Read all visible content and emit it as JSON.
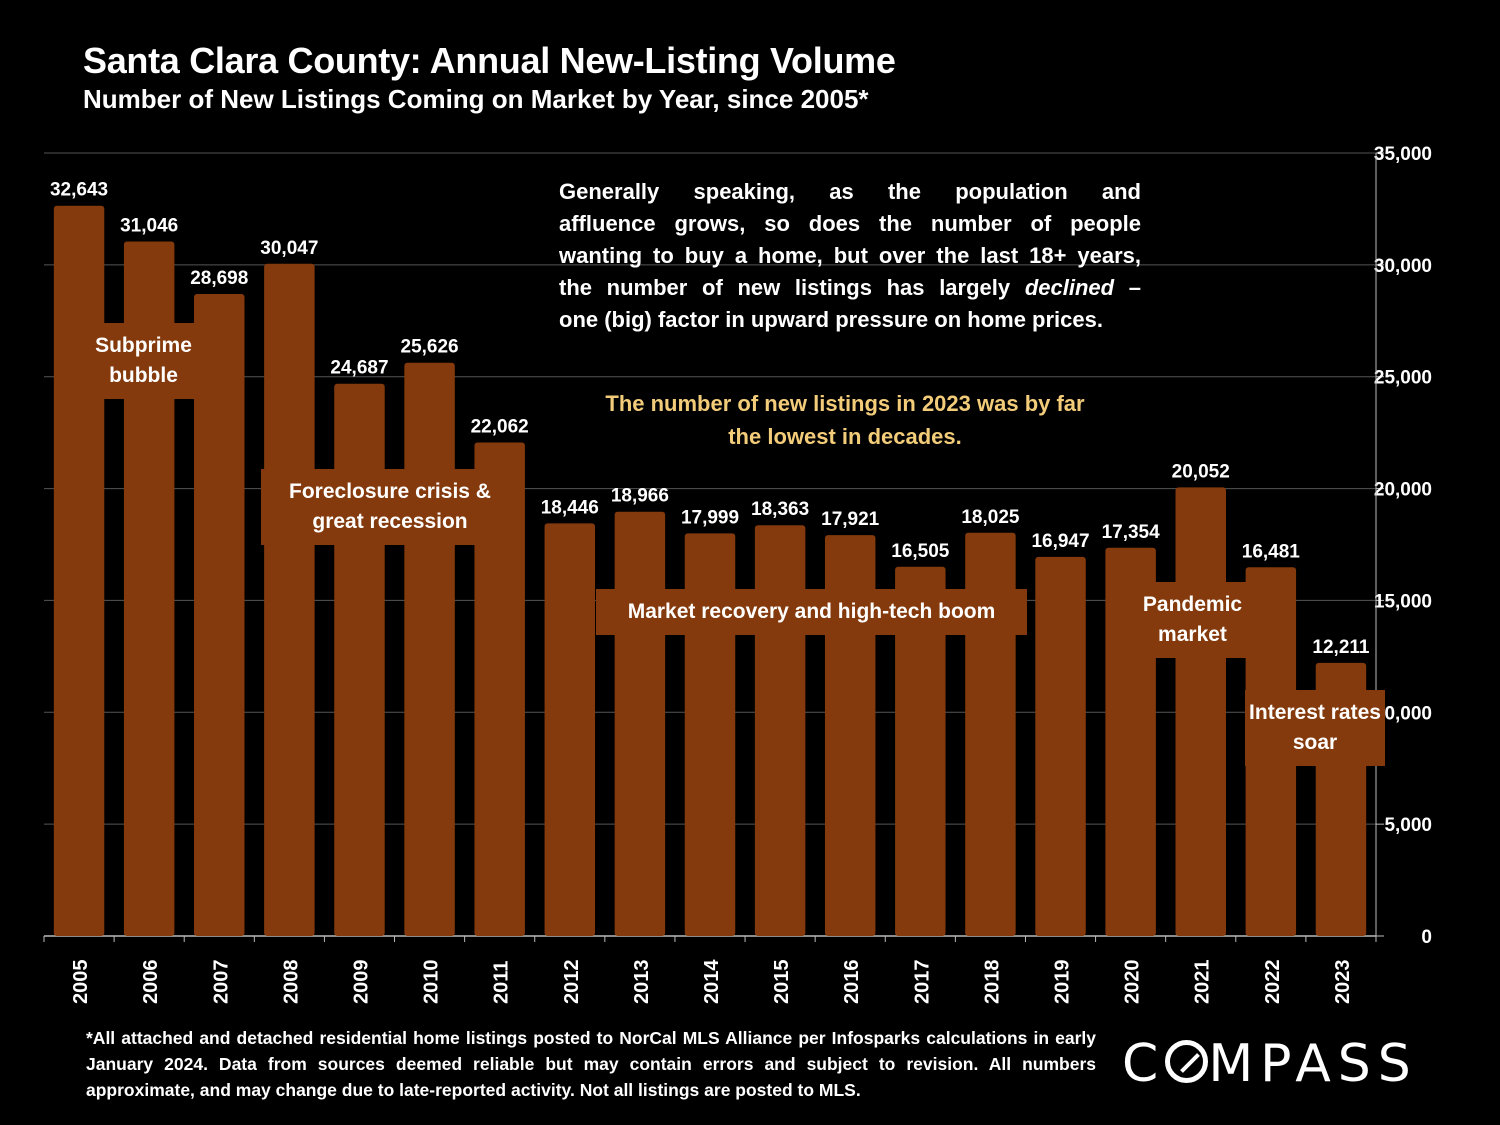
{
  "title": "Santa Clara County: Annual New-Listing Volume",
  "subtitle": "Number of New Listings Coming on Market by Year, since 2005*",
  "annotations": {
    "main_lines": [
      "Generally speaking, as the population and",
      "affluence grows, so does the number of people",
      "wanting to buy a home, but over the last 18+ years,",
      "the number of new listings has largely"
    ],
    "main_emph": "declined",
    "main_dash": "–",
    "main_last": "one (big) factor in upward pressure on home prices.",
    "highlight": "The number of new listings in 2023 was by far the lowest in decades.",
    "highlight_color": "#f3cc7a"
  },
  "eras": {
    "subprime": "Subprime bubble",
    "foreclosure": "Foreclosure crisis & great recession",
    "recovery": "Market recovery and high-tech boom",
    "pandemic": "Pandemic market",
    "rates": "Interest rates soar"
  },
  "footnote": "*All attached and detached residential home listings posted to NorCal MLS Alliance per Infosparks calculations in early January 2024. Data from sources deemed reliable but may contain errors and subject to revision. All numbers approximate, and may change due to late-reported activity. Not all listings are posted to MLS.",
  "logo": {
    "before": "C",
    "after": "MPASS"
  },
  "colors": {
    "bar": "#843a0c",
    "background": "#000000",
    "grid": "#555555"
  },
  "chart_data": {
    "type": "bar",
    "categories": [
      "2005",
      "2006",
      "2007",
      "2008",
      "2009",
      "2010",
      "2011",
      "2012",
      "2013",
      "2014",
      "2015",
      "2016",
      "2017",
      "2018",
      "2019",
      "2020",
      "2021",
      "2022",
      "2023"
    ],
    "values": [
      32643,
      31046,
      28698,
      30047,
      24687,
      25626,
      22062,
      18446,
      18966,
      17999,
      18363,
      17921,
      16505,
      18025,
      16947,
      17354,
      20052,
      16481,
      12211
    ],
    "value_labels": [
      "32,643",
      "31,046",
      "28,698",
      "30,047",
      "24,687",
      "25,626",
      "22,062",
      "18,446",
      "18,966",
      "17,999",
      "18,363",
      "17,921",
      "16,505",
      "18,025",
      "16,947",
      "17,354",
      "20,052",
      "16,481",
      "12,211"
    ],
    "y_ticks": [
      0,
      5000,
      10000,
      15000,
      20000,
      25000,
      30000,
      35000
    ],
    "y_tick_labels": [
      "0",
      "5,000",
      "10,000",
      "15,000",
      "20,000",
      "25,000",
      "30,000",
      "35,000"
    ],
    "ylim": [
      0,
      35000
    ],
    "y_axis_side": "right",
    "grid": true
  }
}
